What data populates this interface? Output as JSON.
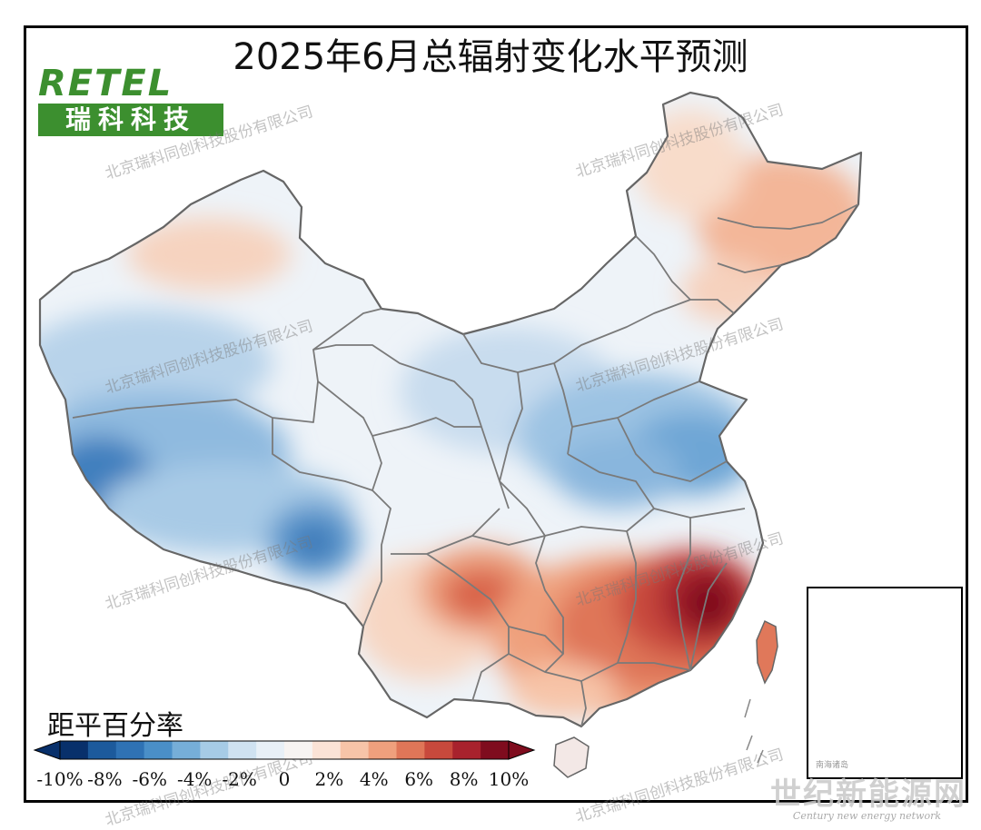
{
  "title": "2025年6月总辐射变化水平预测",
  "logo": {
    "text": "RETEL",
    "cn": "瑞科科技"
  },
  "watermark": "北京瑞科同创科技股份有限公司",
  "legend": {
    "title": "距平百分率",
    "ticks": [
      "-10%",
      "-8%",
      "-6%",
      "-4%",
      "-2%",
      "0",
      "2%",
      "4%",
      "6%",
      "8%",
      "10%"
    ],
    "colors": [
      "#08306b",
      "#1c5a9c",
      "#2f72b4",
      "#4a8fc8",
      "#76aed8",
      "#a6cbe6",
      "#cfe2f1",
      "#e8f0f7",
      "#f7f4f2",
      "#fbe3d6",
      "#f7c4a8",
      "#efa07d",
      "#df7658",
      "#c8493c",
      "#a8222d",
      "#7f0c1e"
    ]
  },
  "inset_caption": "南海诸岛",
  "corner_brand": {
    "cn": "世纪新能源网",
    "en": "Century new energy network"
  }
}
